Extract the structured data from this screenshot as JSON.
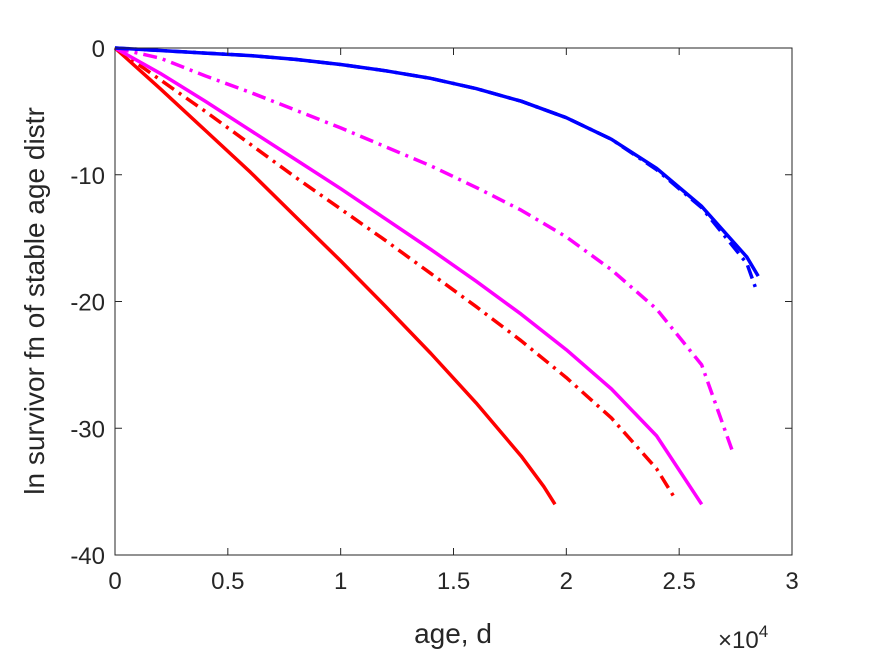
{
  "chart_data": {
    "type": "line",
    "xlabel": "age, d",
    "ylabel": "ln survivor fn of stable age distr",
    "x_exponent_label": "×10",
    "x_exponent_power": "4",
    "xlim": [
      0,
      3
    ],
    "ylim": [
      -40,
      0
    ],
    "x_ticks": [
      "0",
      "0.5",
      "1",
      "1.5",
      "2",
      "2.5",
      "3"
    ],
    "y_ticks": [
      "0",
      "-10",
      "-20",
      "-30",
      "-40"
    ],
    "x_tick_values": [
      0,
      0.5,
      1,
      1.5,
      2,
      2.5,
      3
    ],
    "y_tick_values": [
      0,
      -10,
      -20,
      -30,
      -40
    ],
    "grid": false,
    "legend": "none",
    "series": [
      {
        "color": "#ff0000",
        "style": "solid",
        "x": [
          0,
          0.2,
          0.4,
          0.6,
          0.8,
          1.0,
          1.2,
          1.4,
          1.6,
          1.8,
          1.9,
          1.95
        ],
        "y": [
          0,
          -3.2,
          -6.5,
          -9.8,
          -13.3,
          -16.8,
          -20.4,
          -24.1,
          -28.0,
          -32.2,
          -34.6,
          -36.0
        ]
      },
      {
        "color": "#ff0000",
        "style": "dashdot",
        "x": [
          0,
          0.2,
          0.4,
          0.6,
          0.8,
          1.0,
          1.2,
          1.4,
          1.6,
          1.8,
          2.0,
          2.2,
          2.4,
          2.48
        ],
        "y": [
          0,
          -2.5,
          -5.0,
          -7.6,
          -10.2,
          -12.7,
          -15.2,
          -17.8,
          -20.4,
          -23.1,
          -26.0,
          -29.2,
          -33.2,
          -35.5
        ]
      },
      {
        "color": "#ff00ff",
        "style": "solid",
        "x": [
          0,
          0.2,
          0.4,
          0.6,
          0.8,
          1.0,
          1.2,
          1.4,
          1.6,
          1.8,
          2.0,
          2.2,
          2.4,
          2.6
        ],
        "y": [
          0,
          -2.0,
          -4.2,
          -6.5,
          -8.8,
          -11.1,
          -13.5,
          -15.9,
          -18.4,
          -21.0,
          -23.8,
          -26.9,
          -30.6,
          -36.0
        ]
      },
      {
        "color": "#ff00ff",
        "style": "dashdot",
        "x": [
          0,
          0.2,
          0.4,
          0.6,
          0.8,
          1.0,
          1.2,
          1.4,
          1.6,
          1.8,
          2.0,
          2.2,
          2.4,
          2.6,
          2.74
        ],
        "y": [
          0,
          -0.8,
          -2.2,
          -3.5,
          -4.9,
          -6.3,
          -7.8,
          -9.3,
          -11.0,
          -12.8,
          -14.9,
          -17.5,
          -20.6,
          -25.0,
          -32.0
        ]
      },
      {
        "color": "#0000ff",
        "style": "solid",
        "x": [
          0,
          0.2,
          0.4,
          0.6,
          0.8,
          1.0,
          1.2,
          1.4,
          1.6,
          1.8,
          2.0,
          2.2,
          2.4,
          2.6,
          2.8,
          2.85
        ],
        "y": [
          0,
          -0.2,
          -0.4,
          -0.6,
          -0.9,
          -1.3,
          -1.8,
          -2.4,
          -3.2,
          -4.2,
          -5.5,
          -7.2,
          -9.5,
          -12.5,
          -16.5,
          -18.0
        ]
      },
      {
        "color": "#0000ff",
        "style": "dashdot",
        "x": [
          0,
          0.2,
          0.4,
          0.6,
          0.8,
          1.0,
          1.2,
          1.4,
          1.6,
          1.8,
          2.0,
          2.2,
          2.4,
          2.6,
          2.8,
          2.84
        ],
        "y": [
          0,
          -0.2,
          -0.4,
          -0.6,
          -0.9,
          -1.3,
          -1.8,
          -2.4,
          -3.2,
          -4.2,
          -5.5,
          -7.2,
          -9.6,
          -12.6,
          -17.0,
          -19.0
        ]
      }
    ]
  }
}
